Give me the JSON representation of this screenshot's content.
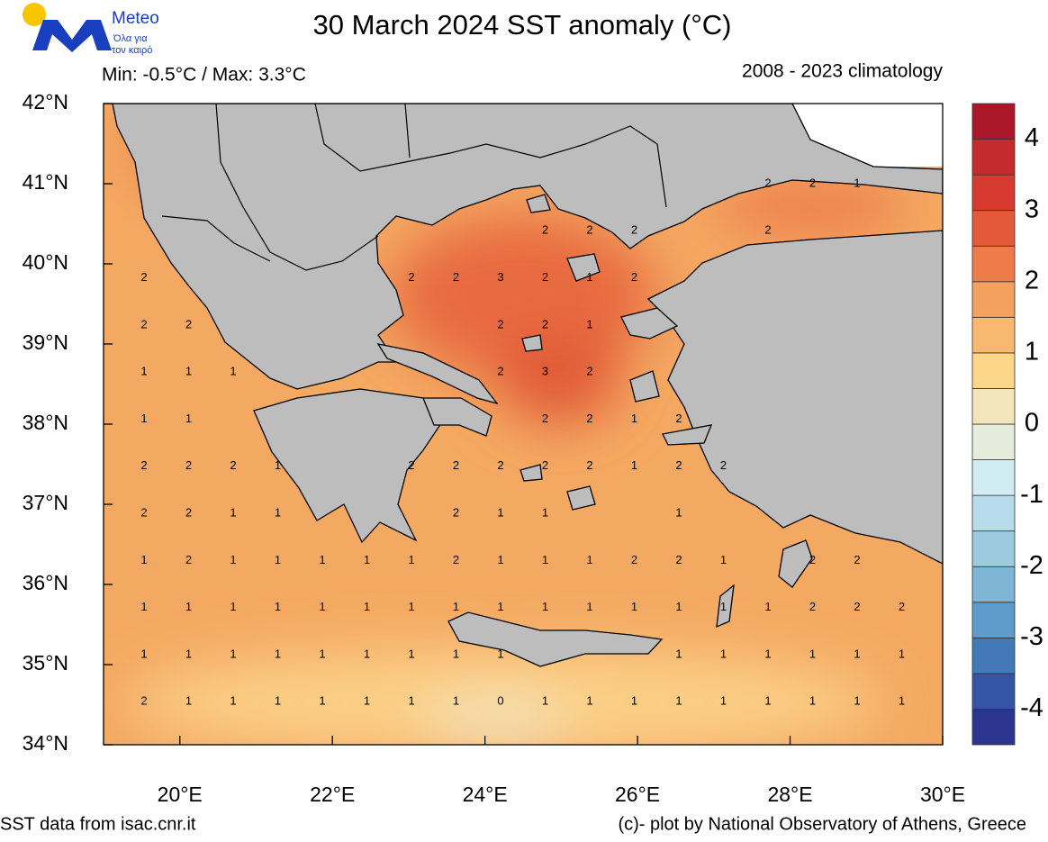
{
  "logo": {
    "name": "Meteo",
    "tagline1": "Όλα για",
    "tagline2": "τον καιρό"
  },
  "title": "30 March 2024 SST anomaly (°C)",
  "minmax": "Min: -0.5°C / Max: 3.3°C",
  "climatology": "2008 - 2023 climatology",
  "map": {
    "lonlim": [
      19,
      30
    ],
    "latlim": [
      34,
      42
    ],
    "lonticks": [
      {
        "value": 20,
        "label": "20°E"
      },
      {
        "value": 22,
        "label": "22°E"
      },
      {
        "value": 24,
        "label": "24°E"
      },
      {
        "value": 26,
        "label": "26°E"
      },
      {
        "value": 28,
        "label": "28°E"
      },
      {
        "value": 30,
        "label": "30°E"
      }
    ],
    "latticks": [
      {
        "value": 42,
        "label": "42°N"
      },
      {
        "value": 41,
        "label": "41°N"
      },
      {
        "value": 40,
        "label": "40°N"
      },
      {
        "value": 39,
        "label": "39°N"
      },
      {
        "value": 38,
        "label": "38°N"
      },
      {
        "value": 37,
        "label": "37°N"
      },
      {
        "value": 36,
        "label": "36°N"
      },
      {
        "value": 35,
        "label": "35°N"
      },
      {
        "value": 34,
        "label": "34°N"
      }
    ],
    "contour_labels": [
      [
        null,
        null,
        null,
        null,
        null,
        null,
        null,
        null,
        null,
        null,
        null,
        null,
        null,
        null,
        2,
        2,
        1,
        null
      ],
      [
        null,
        null,
        null,
        null,
        null,
        null,
        null,
        null,
        null,
        2,
        2,
        2,
        null,
        null,
        2,
        null,
        null,
        null
      ],
      [
        2,
        null,
        null,
        null,
        null,
        null,
        2,
        2,
        3,
        2,
        1,
        2,
        null,
        null,
        null,
        null,
        null,
        null
      ],
      [
        2,
        2,
        null,
        null,
        null,
        null,
        null,
        null,
        2,
        2,
        1,
        null,
        null,
        null,
        null,
        null,
        null,
        null
      ],
      [
        1,
        1,
        1,
        null,
        null,
        null,
        null,
        null,
        2,
        3,
        2,
        null,
        null,
        null,
        null,
        null,
        null,
        null
      ],
      [
        1,
        1,
        null,
        null,
        null,
        null,
        null,
        null,
        null,
        2,
        2,
        1,
        2,
        null,
        null,
        null,
        null,
        null
      ],
      [
        2,
        2,
        2,
        1,
        null,
        null,
        2,
        2,
        2,
        2,
        2,
        1,
        2,
        2,
        null,
        null,
        null,
        null
      ],
      [
        2,
        2,
        1,
        1,
        null,
        null,
        null,
        2,
        1,
        1,
        null,
        null,
        1,
        null,
        null,
        null,
        null,
        null
      ],
      [
        1,
        2,
        1,
        1,
        1,
        1,
        1,
        2,
        1,
        1,
        1,
        2,
        2,
        1,
        null,
        2,
        2,
        null
      ],
      [
        1,
        1,
        1,
        1,
        1,
        1,
        1,
        1,
        1,
        1,
        1,
        1,
        1,
        1,
        1,
        2,
        2,
        2
      ],
      [
        1,
        1,
        1,
        1,
        1,
        1,
        1,
        1,
        1,
        null,
        null,
        null,
        1,
        1,
        1,
        1,
        1,
        1
      ],
      [
        2,
        1,
        1,
        1,
        1,
        1,
        1,
        1,
        0,
        1,
        1,
        1,
        1,
        1,
        1,
        1,
        1,
        1
      ]
    ]
  },
  "colorbar": {
    "levels": [
      -4.5,
      -4,
      -3.5,
      -3,
      -2.5,
      -2,
      -1.5,
      -1,
      -0.5,
      0,
      0.5,
      1,
      1.5,
      2,
      2.5,
      3,
      3.5,
      4,
      4.5
    ],
    "colors": [
      "#2b3590",
      "#3454a4",
      "#4479b8",
      "#5f9ccb",
      "#7fb6d6",
      "#9ccbe0",
      "#b8dceb",
      "#d2ecf3",
      "#e6ecdc",
      "#f2e5bb",
      "#fdd68a",
      "#f9b870",
      "#f4a05e",
      "#ee7b4a",
      "#e35a3a",
      "#d63a30",
      "#c52a2d",
      "#a91729"
    ],
    "ticks": [
      -4,
      -3,
      -2,
      -1,
      0,
      1,
      2,
      3,
      4
    ]
  },
  "footer_left": "SST data from isac.cnr.it",
  "footer_right": "(c)- plot by National Observatory of Athens, Greece"
}
